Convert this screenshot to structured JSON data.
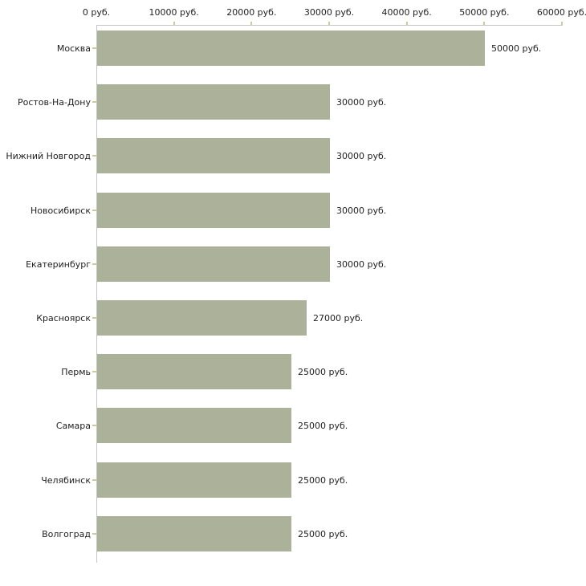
{
  "page": {
    "background_color": "#ffffff",
    "text_color": "#222222"
  },
  "chart_data": {
    "type": "bar",
    "orientation": "horizontal",
    "title": "",
    "xlabel": "",
    "ylabel": "",
    "grid": false,
    "legend": false,
    "xlim": [
      0,
      60000
    ],
    "categories": [
      "Москва",
      "Ростов-На-Дону",
      "Нижний Новгород",
      "Новосибирск",
      "Екатеринбург",
      "Красноярск",
      "Пермь",
      "Самара",
      "Челябинск",
      "Волгоград"
    ],
    "values": [
      50000,
      30000,
      30000,
      30000,
      30000,
      27000,
      25000,
      25000,
      25000,
      25000
    ],
    "value_labels": [
      "50000 руб.",
      "30000 руб.",
      "30000 руб.",
      "30000 руб.",
      "30000 руб.",
      "27000 руб.",
      "25000 руб.",
      "25000 руб.",
      "25000 руб.",
      "25000 руб."
    ],
    "x_axis": {
      "tick_values": [
        0,
        10000,
        20000,
        30000,
        40000,
        50000,
        60000
      ],
      "tick_labels": [
        "0 руб.",
        "10000 руб.",
        "20000 руб.",
        "30000 руб.",
        "40000 руб.",
        "50000 руб.",
        "60000 руб."
      ]
    },
    "colors": {
      "bar_fill": "#acb29a",
      "axis_line": "#c6c6c6",
      "tick_mark": "#cccc99",
      "label_text": "#222222"
    }
  }
}
